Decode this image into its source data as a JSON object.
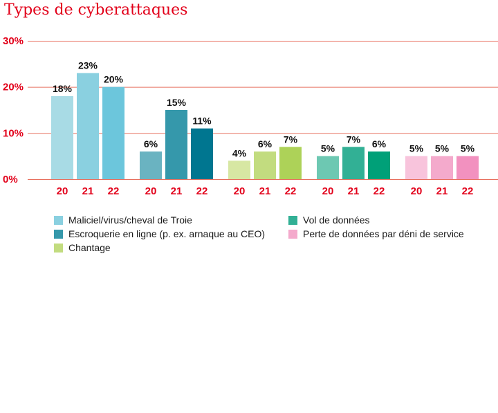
{
  "chart_data": {
    "type": "bar",
    "title": "Types de cyberattaques",
    "ylim": [
      0,
      30
    ],
    "yticks": [
      "0%",
      "10%",
      "20%",
      "30%"
    ],
    "ytick_values": [
      0,
      10,
      20,
      30
    ],
    "grid": true,
    "legend_position": "bottom",
    "groups": [
      {
        "name": "Maliciel/virus/cheval de Troie",
        "categories": [
          "20",
          "21",
          "22"
        ],
        "values": [
          18,
          23,
          20
        ],
        "labels": [
          "18%",
          "23%",
          "20%"
        ],
        "colors": [
          "#a8dbe5",
          "#8ad0e0",
          "#6cc6dc"
        ]
      },
      {
        "name": "Escroquerie en ligne (p. ex. arnaque au CEO)",
        "categories": [
          "20",
          "21",
          "22"
        ],
        "values": [
          6,
          15,
          11
        ],
        "labels": [
          "6%",
          "15%",
          "11%"
        ],
        "colors": [
          "#6ab3c1",
          "#3598ab",
          "#007690"
        ]
      },
      {
        "name": "Chantage",
        "categories": [
          "20",
          "21",
          "22"
        ],
        "values": [
          4,
          6,
          7
        ],
        "labels": [
          "4%",
          "6%",
          "7%"
        ],
        "colors": [
          "#d7e7a3",
          "#c2dc7f",
          "#add258"
        ]
      },
      {
        "name": "Vol de données",
        "categories": [
          "20",
          "21",
          "22"
        ],
        "values": [
          5,
          7,
          6
        ],
        "labels": [
          "5%",
          "7%",
          "6%"
        ],
        "colors": [
          "#6dc8b2",
          "#32b095",
          "#00a078"
        ]
      },
      {
        "name": "Perte de données par déni de service",
        "categories": [
          "20",
          "21",
          "22"
        ],
        "values": [
          5,
          5,
          5
        ],
        "labels": [
          "5%",
          "5%",
          "5%"
        ],
        "colors": [
          "#f8c4dc",
          "#f4aacc",
          "#f291bf"
        ]
      }
    ],
    "colors": {
      "grid": "#e8705f",
      "axis_text": "#e2001a",
      "label_text": "#111111"
    }
  }
}
